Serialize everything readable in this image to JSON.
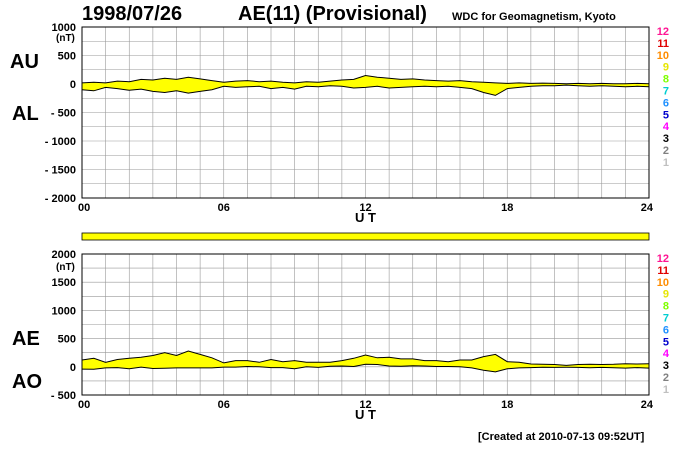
{
  "header": {
    "date": "1998/07/26",
    "title": "AE(11) (Provisional)",
    "org": "WDC for Geomagnetism, Kyoto",
    "created": "[Created at 2010-07-13 09:52UT]"
  },
  "colors": {
    "fill": "#ffff00",
    "line": "#000000",
    "grid": "#999999"
  },
  "station_count_legend": [
    {
      "label": "12",
      "color": "#ff1493"
    },
    {
      "label": "11",
      "color": "#e00000"
    },
    {
      "label": "10",
      "color": "#ff8c00"
    },
    {
      "label": "9",
      "color": "#e6e600"
    },
    {
      "label": "8",
      "color": "#7fff00"
    },
    {
      "label": "7",
      "color": "#00ced1"
    },
    {
      "label": "6",
      "color": "#1e90ff"
    },
    {
      "label": "5",
      "color": "#0000cd"
    },
    {
      "label": "4",
      "color": "#ff00ff"
    },
    {
      "label": "3",
      "color": "#000000"
    },
    {
      "label": "2",
      "color": "#808080"
    },
    {
      "label": "1",
      "color": "#c0c0c0"
    }
  ],
  "station_bar": {
    "color": "#ffff00",
    "value": 11,
    "value_note": "station count throughout the day (yellow)"
  },
  "chart_data": [
    {
      "type": "area",
      "name": "AU/AL",
      "labels": {
        "upper": "AU",
        "lower": "AL"
      },
      "unit": "(nT)",
      "xlabel": "U T",
      "x_ticks": [
        "00",
        "06",
        "12",
        "18",
        "24"
      ],
      "x_range": [
        0,
        24
      ],
      "y_ticks": [
        "1000",
        "500",
        "0",
        "- 500",
        "- 1000",
        "- 1500",
        "- 2000"
      ],
      "y_range": [
        -2000,
        1000
      ],
      "grid": true,
      "series": [
        {
          "key": "AU",
          "x": [
            0,
            0.5,
            1,
            1.5,
            2,
            2.5,
            3,
            3.5,
            4,
            4.5,
            5,
            5.5,
            6,
            6.5,
            7,
            7.5,
            8,
            8.5,
            9,
            9.5,
            10,
            10.5,
            11,
            11.5,
            12,
            12.5,
            13,
            13.5,
            14,
            14.5,
            15,
            15.5,
            16,
            16.5,
            17,
            17.5,
            18,
            18.5,
            19,
            19.5,
            20,
            20.5,
            21,
            21.5,
            22,
            22.5,
            23,
            23.5,
            24
          ],
          "values": [
            20,
            30,
            20,
            50,
            40,
            80,
            70,
            100,
            80,
            120,
            90,
            60,
            30,
            50,
            60,
            40,
            50,
            30,
            20,
            40,
            30,
            50,
            70,
            80,
            150,
            120,
            100,
            80,
            90,
            70,
            60,
            50,
            60,
            40,
            30,
            20,
            10,
            20,
            10,
            15,
            10,
            5,
            10,
            5,
            10,
            5,
            5,
            10,
            5
          ]
        },
        {
          "key": "AL",
          "x": [
            0,
            0.5,
            1,
            1.5,
            2,
            2.5,
            3,
            3.5,
            4,
            4.5,
            5,
            5.5,
            6,
            6.5,
            7,
            7.5,
            8,
            8.5,
            9,
            9.5,
            10,
            10.5,
            11,
            11.5,
            12,
            12.5,
            13,
            13.5,
            14,
            14.5,
            15,
            15.5,
            16,
            16.5,
            17,
            17.5,
            18,
            18.5,
            19,
            19.5,
            20,
            20.5,
            21,
            21.5,
            22,
            22.5,
            23,
            23.5,
            24
          ],
          "values": [
            -100,
            -120,
            -60,
            -80,
            -110,
            -90,
            -130,
            -150,
            -120,
            -160,
            -130,
            -100,
            -40,
            -60,
            -50,
            -40,
            -80,
            -60,
            -90,
            -40,
            -50,
            -30,
            -40,
            -70,
            -60,
            -40,
            -70,
            -60,
            -50,
            -40,
            -50,
            -40,
            -60,
            -80,
            -150,
            -200,
            -80,
            -60,
            -40,
            -30,
            -30,
            -20,
            -30,
            -40,
            -30,
            -40,
            -50,
            -40,
            -50
          ]
        }
      ]
    },
    {
      "type": "area",
      "name": "AE/AO",
      "labels": {
        "upper": "AE",
        "lower": "AO"
      },
      "unit": "(nT)",
      "xlabel": "U T",
      "x_ticks": [
        "00",
        "06",
        "12",
        "18",
        "24"
      ],
      "x_range": [
        0,
        24
      ],
      "y_ticks": [
        "2000",
        "1500",
        "1000",
        "500",
        "0",
        "- 500"
      ],
      "y_range": [
        -500,
        2000
      ],
      "grid": true,
      "series": [
        {
          "key": "AE",
          "x": [
            0,
            0.5,
            1,
            1.5,
            2,
            2.5,
            3,
            3.5,
            4,
            4.5,
            5,
            5.5,
            6,
            6.5,
            7,
            7.5,
            8,
            8.5,
            9,
            9.5,
            10,
            10.5,
            11,
            11.5,
            12,
            12.5,
            13,
            13.5,
            14,
            14.5,
            15,
            15.5,
            16,
            16.5,
            17,
            17.5,
            18,
            18.5,
            19,
            19.5,
            20,
            20.5,
            21,
            21.5,
            22,
            22.5,
            23,
            23.5,
            24
          ],
          "values": [
            120,
            150,
            80,
            130,
            150,
            170,
            200,
            250,
            200,
            280,
            220,
            160,
            70,
            110,
            110,
            80,
            130,
            90,
            110,
            80,
            80,
            80,
            110,
            150,
            210,
            160,
            170,
            140,
            140,
            110,
            110,
            90,
            120,
            120,
            180,
            220,
            90,
            80,
            50,
            45,
            40,
            25,
            40,
            45,
            40,
            45,
            55,
            50,
            55
          ]
        },
        {
          "key": "AO",
          "x": [
            0,
            0.5,
            1,
            1.5,
            2,
            2.5,
            3,
            3.5,
            4,
            4.5,
            5,
            5.5,
            6,
            6.5,
            7,
            7.5,
            8,
            8.5,
            9,
            9.5,
            10,
            10.5,
            11,
            11.5,
            12,
            12.5,
            13,
            13.5,
            14,
            14.5,
            15,
            15.5,
            16,
            16.5,
            17,
            17.5,
            18,
            18.5,
            19,
            19.5,
            20,
            20.5,
            21,
            21.5,
            22,
            22.5,
            23,
            23.5,
            24
          ],
          "values": [
            -40,
            -45,
            -20,
            -15,
            -35,
            -5,
            -30,
            -25,
            -20,
            -20,
            -20,
            -20,
            -5,
            -5,
            5,
            0,
            -15,
            -15,
            -35,
            0,
            -10,
            10,
            15,
            5,
            45,
            40,
            15,
            10,
            20,
            15,
            5,
            5,
            0,
            -20,
            -60,
            -90,
            -35,
            -20,
            -15,
            -8,
            -10,
            -8,
            -10,
            -18,
            -10,
            -18,
            -23,
            -15,
            -23
          ]
        }
      ]
    }
  ]
}
